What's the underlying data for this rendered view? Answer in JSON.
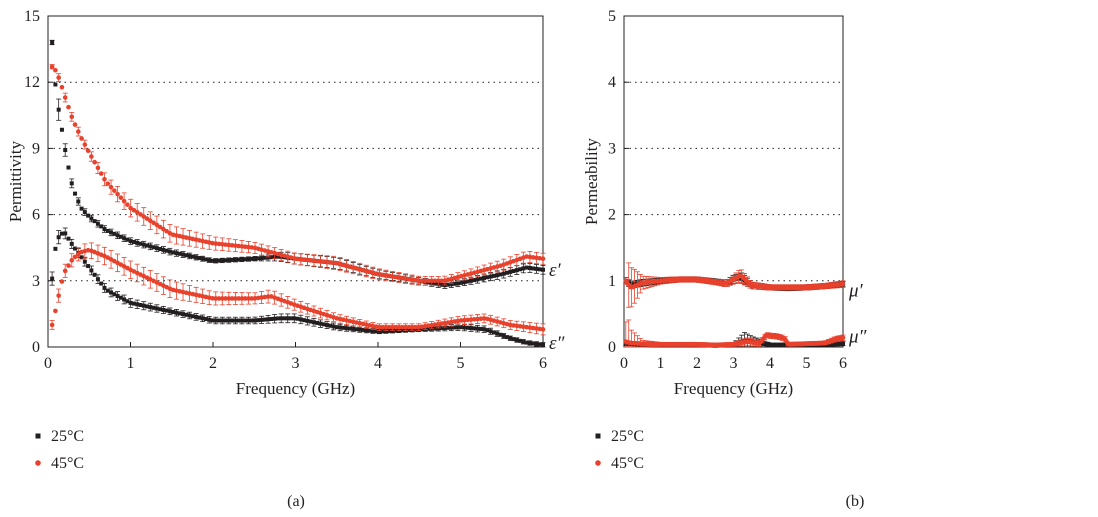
{
  "chart_data": [
    {
      "type": "scatter",
      "panel_label": "(a)",
      "xlabel": "Frequency (GHz)",
      "ylabel": "Permittivity",
      "xlim": [
        0,
        6
      ],
      "ylim": [
        0,
        15
      ],
      "x_ticks": [
        0,
        1,
        2,
        3,
        4,
        5,
        6
      ],
      "y_ticks": [
        0,
        3,
        6,
        9,
        12,
        15
      ],
      "grid": "horizontal dotted",
      "legend_position": "bottom-left below plot",
      "error_bars": true,
      "series_labels": [
        {
          "text": "ε′",
          "at_x": 6,
          "at_y": 3.5
        },
        {
          "text": "ε″",
          "at_x": 6,
          "at_y": 0.0
        }
      ],
      "series": [
        {
          "name": "25°C",
          "color": "#231f20",
          "marker": "square",
          "component": "real",
          "x": [
            0.05,
            0.1,
            0.15,
            0.2,
            0.25,
            0.3,
            0.4,
            0.5,
            0.7,
            1.0,
            1.5,
            2.0,
            2.5,
            2.8,
            3.0,
            3.5,
            4.0,
            4.5,
            4.8,
            5.0,
            5.5,
            5.8,
            6.0
          ],
          "y": [
            13.8,
            11.4,
            10.3,
            9.1,
            8.1,
            7.2,
            6.3,
            5.9,
            5.3,
            4.8,
            4.3,
            3.9,
            4.0,
            4.1,
            4.0,
            3.8,
            3.3,
            3.0,
            2.8,
            2.9,
            3.3,
            3.6,
            3.5
          ],
          "err": [
            0.1,
            0.6,
            0.4,
            0.3,
            0.2,
            0.2,
            0.15,
            0.15,
            0.15,
            0.15,
            0.15,
            0.1,
            0.1,
            0.2,
            0.25,
            0.25,
            0.2,
            0.15,
            0.15,
            0.15,
            0.2,
            0.2,
            0.2
          ]
        },
        {
          "name": "25°C",
          "color": "#231f20",
          "marker": "square",
          "component": "imaginary",
          "x": [
            0.05,
            0.1,
            0.15,
            0.2,
            0.3,
            0.5,
            0.7,
            1.0,
            1.5,
            2.0,
            2.5,
            2.8,
            3.0,
            3.5,
            4.0,
            4.5,
            5.0,
            5.3,
            5.6,
            5.8,
            6.0
          ],
          "y": [
            3.1,
            4.8,
            5.1,
            5.2,
            4.6,
            3.6,
            2.6,
            2.0,
            1.6,
            1.2,
            1.2,
            1.3,
            1.3,
            0.9,
            0.7,
            0.8,
            0.9,
            0.8,
            0.4,
            0.2,
            0.1
          ],
          "err": [
            0.3,
            0.3,
            0.3,
            0.25,
            0.2,
            0.2,
            0.2,
            0.2,
            0.15,
            0.15,
            0.15,
            0.2,
            0.2,
            0.15,
            0.1,
            0.1,
            0.15,
            0.15,
            0.1,
            0.1,
            0.1
          ]
        },
        {
          "name": "45°C",
          "color": "#e8412c",
          "marker": "circle",
          "component": "real",
          "x": [
            0.05,
            0.1,
            0.15,
            0.2,
            0.3,
            0.4,
            0.5,
            0.7,
            1.0,
            1.5,
            2.0,
            2.5,
            2.8,
            3.0,
            3.5,
            4.0,
            4.5,
            4.8,
            5.0,
            5.5,
            5.8,
            6.0
          ],
          "y": [
            12.7,
            12.5,
            12.0,
            11.4,
            10.3,
            9.5,
            8.8,
            7.5,
            6.3,
            5.1,
            4.7,
            4.5,
            4.2,
            4.0,
            3.8,
            3.3,
            3.0,
            3.0,
            3.2,
            3.7,
            4.1,
            4.0
          ],
          "err": [
            0.1,
            0.15,
            0.2,
            0.2,
            0.2,
            0.2,
            0.2,
            0.3,
            0.4,
            0.4,
            0.3,
            0.25,
            0.25,
            0.25,
            0.3,
            0.25,
            0.2,
            0.2,
            0.2,
            0.25,
            0.25,
            0.25
          ]
        },
        {
          "name": "45°C",
          "color": "#e8412c",
          "marker": "circle",
          "component": "imaginary",
          "x": [
            0.05,
            0.1,
            0.15,
            0.2,
            0.3,
            0.4,
            0.5,
            0.7,
            1.0,
            1.5,
            2.0,
            2.5,
            2.7,
            3.0,
            3.5,
            4.0,
            4.5,
            5.0,
            5.3,
            5.6,
            6.0
          ],
          "y": [
            1.0,
            1.8,
            2.7,
            3.4,
            4.0,
            4.3,
            4.4,
            4.1,
            3.5,
            2.6,
            2.2,
            2.2,
            2.3,
            1.9,
            1.3,
            0.9,
            0.9,
            1.2,
            1.3,
            1.0,
            0.8
          ],
          "err": [
            0.2,
            0.3,
            0.3,
            0.3,
            0.3,
            0.3,
            0.35,
            0.4,
            0.4,
            0.4,
            0.3,
            0.25,
            0.3,
            0.25,
            0.2,
            0.15,
            0.15,
            0.2,
            0.2,
            0.2,
            0.25
          ]
        }
      ]
    },
    {
      "type": "scatter",
      "panel_label": "(b)",
      "xlabel": "Frequency (GHz)",
      "ylabel": "Permeability",
      "xlim": [
        0,
        6
      ],
      "ylim": [
        0,
        5
      ],
      "x_ticks": [
        0,
        1,
        2,
        3,
        4,
        5,
        6
      ],
      "y_ticks": [
        0,
        1,
        2,
        3,
        4,
        5
      ],
      "grid": "horizontal dotted",
      "legend_position": "bottom-left below plot",
      "error_bars": true,
      "series_labels": [
        {
          "text": "μ′",
          "at_x": 6,
          "at_y": 0.85
        },
        {
          "text": "μ″",
          "at_x": 6,
          "at_y": 0.1
        }
      ],
      "series": [
        {
          "name": "25°C",
          "color": "#231f20",
          "marker": "square",
          "component": "real",
          "x": [
            0.05,
            0.1,
            0.2,
            0.3,
            0.5,
            1.0,
            1.5,
            2.0,
            2.5,
            2.8,
            3.0,
            3.2,
            3.5,
            4.0,
            4.5,
            5.0,
            5.5,
            6.0
          ],
          "y": [
            1.0,
            0.98,
            0.93,
            0.95,
            0.97,
            1.0,
            1.02,
            1.02,
            0.99,
            0.96,
            1.02,
            1.05,
            0.93,
            0.9,
            0.89,
            0.9,
            0.92,
            0.95
          ],
          "err": [
            0.05,
            0.05,
            0.05,
            0.05,
            0.05,
            0.04,
            0.04,
            0.04,
            0.04,
            0.05,
            0.06,
            0.08,
            0.05,
            0.04,
            0.04,
            0.04,
            0.04,
            0.04
          ]
        },
        {
          "name": "25°C",
          "color": "#231f20",
          "marker": "square",
          "component": "imaginary",
          "x": [
            0.05,
            0.1,
            0.2,
            0.5,
            1.0,
            1.5,
            2.0,
            2.5,
            3.0,
            3.3,
            3.5,
            4.0,
            4.5,
            5.0,
            5.5,
            6.0
          ],
          "y": [
            0.05,
            0.05,
            0.05,
            0.04,
            0.03,
            0.03,
            0.03,
            0.02,
            0.03,
            0.1,
            0.08,
            0.03,
            0.03,
            0.04,
            0.04,
            0.05
          ],
          "err": [
            0.03,
            0.03,
            0.03,
            0.03,
            0.02,
            0.02,
            0.02,
            0.02,
            0.03,
            0.12,
            0.08,
            0.03,
            0.03,
            0.03,
            0.03,
            0.03
          ]
        },
        {
          "name": "45°C",
          "color": "#e8412c",
          "marker": "circle",
          "component": "real",
          "x": [
            0.05,
            0.1,
            0.2,
            0.3,
            0.5,
            1.0,
            1.5,
            2.0,
            2.5,
            2.8,
            3.0,
            3.2,
            3.5,
            4.0,
            4.5,
            5.0,
            5.5,
            6.0
          ],
          "y": [
            1.0,
            0.95,
            0.9,
            0.92,
            0.97,
            1.0,
            1.02,
            1.02,
            0.98,
            0.96,
            1.02,
            1.08,
            0.93,
            0.9,
            0.9,
            0.9,
            0.92,
            0.95
          ],
          "err": [
            0.05,
            0.35,
            0.3,
            0.25,
            0.1,
            0.05,
            0.04,
            0.04,
            0.04,
            0.05,
            0.07,
            0.1,
            0.05,
            0.04,
            0.04,
            0.04,
            0.04,
            0.05
          ]
        },
        {
          "name": "45°C",
          "color": "#e8412c",
          "marker": "circle",
          "component": "imaginary",
          "x": [
            0.05,
            0.1,
            0.2,
            0.5,
            1.0,
            1.5,
            2.0,
            2.5,
            3.0,
            3.4,
            3.7,
            3.9,
            4.0,
            4.2,
            4.4,
            4.5,
            5.0,
            5.5,
            5.8,
            6.0
          ],
          "y": [
            0.08,
            0.07,
            0.06,
            0.05,
            0.04,
            0.04,
            0.04,
            0.03,
            0.04,
            0.08,
            0.05,
            0.18,
            0.17,
            0.16,
            0.13,
            0.04,
            0.05,
            0.06,
            0.12,
            0.14
          ],
          "err": [
            0.3,
            0.4,
            0.2,
            0.05,
            0.03,
            0.03,
            0.03,
            0.03,
            0.03,
            0.06,
            0.04,
            0.04,
            0.04,
            0.04,
            0.04,
            0.03,
            0.03,
            0.03,
            0.04,
            0.04
          ]
        }
      ]
    }
  ]
}
